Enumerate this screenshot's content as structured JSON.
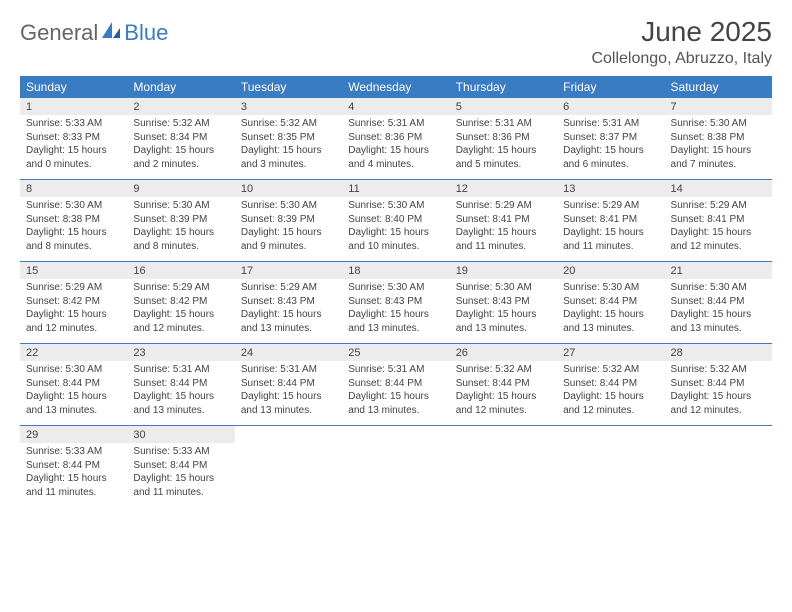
{
  "brand": {
    "part1": "General",
    "part2": "Blue"
  },
  "title": "June 2025",
  "location": "Collelongo, Abruzzo, Italy",
  "colors": {
    "header_bg": "#3a7cc4",
    "header_text": "#ffffff",
    "daynum_bg": "#ececec",
    "text": "#444444",
    "rule": "#3a7cc4"
  },
  "day_headers": [
    "Sunday",
    "Monday",
    "Tuesday",
    "Wednesday",
    "Thursday",
    "Friday",
    "Saturday"
  ],
  "weeks": [
    [
      {
        "n": "1",
        "sr": "5:33 AM",
        "ss": "8:33 PM",
        "dl": "15 hours and 0 minutes."
      },
      {
        "n": "2",
        "sr": "5:32 AM",
        "ss": "8:34 PM",
        "dl": "15 hours and 2 minutes."
      },
      {
        "n": "3",
        "sr": "5:32 AM",
        "ss": "8:35 PM",
        "dl": "15 hours and 3 minutes."
      },
      {
        "n": "4",
        "sr": "5:31 AM",
        "ss": "8:36 PM",
        "dl": "15 hours and 4 minutes."
      },
      {
        "n": "5",
        "sr": "5:31 AM",
        "ss": "8:36 PM",
        "dl": "15 hours and 5 minutes."
      },
      {
        "n": "6",
        "sr": "5:31 AM",
        "ss": "8:37 PM",
        "dl": "15 hours and 6 minutes."
      },
      {
        "n": "7",
        "sr": "5:30 AM",
        "ss": "8:38 PM",
        "dl": "15 hours and 7 minutes."
      }
    ],
    [
      {
        "n": "8",
        "sr": "5:30 AM",
        "ss": "8:38 PM",
        "dl": "15 hours and 8 minutes."
      },
      {
        "n": "9",
        "sr": "5:30 AM",
        "ss": "8:39 PM",
        "dl": "15 hours and 8 minutes."
      },
      {
        "n": "10",
        "sr": "5:30 AM",
        "ss": "8:39 PM",
        "dl": "15 hours and 9 minutes."
      },
      {
        "n": "11",
        "sr": "5:30 AM",
        "ss": "8:40 PM",
        "dl": "15 hours and 10 minutes."
      },
      {
        "n": "12",
        "sr": "5:29 AM",
        "ss": "8:41 PM",
        "dl": "15 hours and 11 minutes."
      },
      {
        "n": "13",
        "sr": "5:29 AM",
        "ss": "8:41 PM",
        "dl": "15 hours and 11 minutes."
      },
      {
        "n": "14",
        "sr": "5:29 AM",
        "ss": "8:41 PM",
        "dl": "15 hours and 12 minutes."
      }
    ],
    [
      {
        "n": "15",
        "sr": "5:29 AM",
        "ss": "8:42 PM",
        "dl": "15 hours and 12 minutes."
      },
      {
        "n": "16",
        "sr": "5:29 AM",
        "ss": "8:42 PM",
        "dl": "15 hours and 12 minutes."
      },
      {
        "n": "17",
        "sr": "5:29 AM",
        "ss": "8:43 PM",
        "dl": "15 hours and 13 minutes."
      },
      {
        "n": "18",
        "sr": "5:30 AM",
        "ss": "8:43 PM",
        "dl": "15 hours and 13 minutes."
      },
      {
        "n": "19",
        "sr": "5:30 AM",
        "ss": "8:43 PM",
        "dl": "15 hours and 13 minutes."
      },
      {
        "n": "20",
        "sr": "5:30 AM",
        "ss": "8:44 PM",
        "dl": "15 hours and 13 minutes."
      },
      {
        "n": "21",
        "sr": "5:30 AM",
        "ss": "8:44 PM",
        "dl": "15 hours and 13 minutes."
      }
    ],
    [
      {
        "n": "22",
        "sr": "5:30 AM",
        "ss": "8:44 PM",
        "dl": "15 hours and 13 minutes."
      },
      {
        "n": "23",
        "sr": "5:31 AM",
        "ss": "8:44 PM",
        "dl": "15 hours and 13 minutes."
      },
      {
        "n": "24",
        "sr": "5:31 AM",
        "ss": "8:44 PM",
        "dl": "15 hours and 13 minutes."
      },
      {
        "n": "25",
        "sr": "5:31 AM",
        "ss": "8:44 PM",
        "dl": "15 hours and 13 minutes."
      },
      {
        "n": "26",
        "sr": "5:32 AM",
        "ss": "8:44 PM",
        "dl": "15 hours and 12 minutes."
      },
      {
        "n": "27",
        "sr": "5:32 AM",
        "ss": "8:44 PM",
        "dl": "15 hours and 12 minutes."
      },
      {
        "n": "28",
        "sr": "5:32 AM",
        "ss": "8:44 PM",
        "dl": "15 hours and 12 minutes."
      }
    ],
    [
      {
        "n": "29",
        "sr": "5:33 AM",
        "ss": "8:44 PM",
        "dl": "15 hours and 11 minutes."
      },
      {
        "n": "30",
        "sr": "5:33 AM",
        "ss": "8:44 PM",
        "dl": "15 hours and 11 minutes."
      },
      null,
      null,
      null,
      null,
      null
    ]
  ],
  "labels": {
    "sunrise": "Sunrise: ",
    "sunset": "Sunset: ",
    "daylight": "Daylight: "
  }
}
